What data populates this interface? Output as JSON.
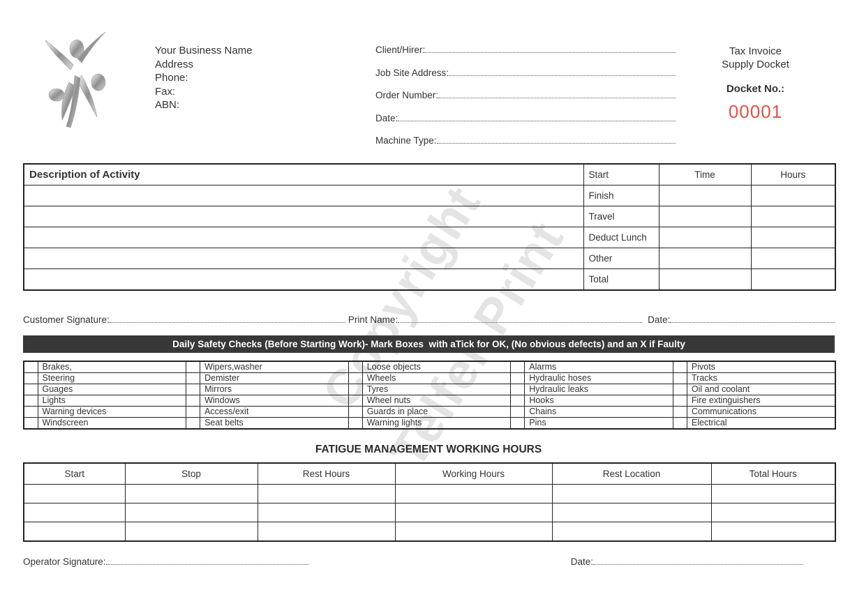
{
  "colors": {
    "docket_number": "#e0534a",
    "banner_bg": "#383838",
    "watermark": "#e4e4e4",
    "border": "#222222"
  },
  "watermark": {
    "line1": "Copyright",
    "line2": "Telfer Print"
  },
  "header": {
    "logo": "abstract-silver-figures-logo",
    "business": {
      "name": "Your Business Name",
      "address": "Address",
      "phone": "Phone:",
      "fax": "Fax:",
      "abn": "ABN:"
    },
    "fields": [
      {
        "label": "Client/Hirer:"
      },
      {
        "label": "Job Site Address:"
      },
      {
        "label": "Order Number:"
      },
      {
        "label": "Date:"
      },
      {
        "label": "Machine Type:"
      }
    ],
    "docket": {
      "title_line1": "Tax Invoice",
      "title_line2": "Supply Docket",
      "number_label": "Docket No.:",
      "number_value": "00001"
    }
  },
  "activity_table": {
    "description_header": "Description of Activity",
    "column_headers": [
      "Time",
      "Hours"
    ],
    "time_row_labels": [
      "Start",
      "Finish",
      "Travel",
      "Deduct Lunch",
      "Other",
      "Total"
    ]
  },
  "customer_sign": {
    "signature_label": "Customer Signature:",
    "print_name_label": "Print Name:",
    "date_label": "Date:"
  },
  "safety": {
    "banner": "Daily Safety Checks (Before Starting Work)- Mark Boxes  with aTick for OK, (No obvious defects) and an X if Faulty",
    "column_groups": [
      [
        "Brakes,",
        "Steering",
        "Guages",
        "Lights",
        "Warning devices",
        "Windscreen"
      ],
      [
        "Wipers,washer",
        "Demister",
        "Mirrors",
        "Windows",
        "Access/exit",
        "Seat belts"
      ],
      [
        "Loose objects",
        "Wheels",
        "Tyres",
        "Wheel nuts",
        "Guards in place",
        "Warning lights"
      ],
      [
        "Alarms",
        "Hydraulic hoses",
        "Hydraulic leaks",
        "Hooks",
        "Chains",
        "Pins"
      ],
      [
        "Pivots",
        "Tracks",
        "Oil and coolant",
        "Fire extinguishers",
        "Communications",
        "Electrical"
      ]
    ]
  },
  "fatigue": {
    "title": "FATIGUE MANAGEMENT WORKING HOURS",
    "headers": [
      "Start",
      "Stop",
      "Rest Hours",
      "Working Hours",
      "Rest Location",
      "Total Hours"
    ],
    "empty_row_count": 3
  },
  "operator_sign": {
    "signature_label": "Operator Signature:",
    "date_label": "Date:"
  }
}
